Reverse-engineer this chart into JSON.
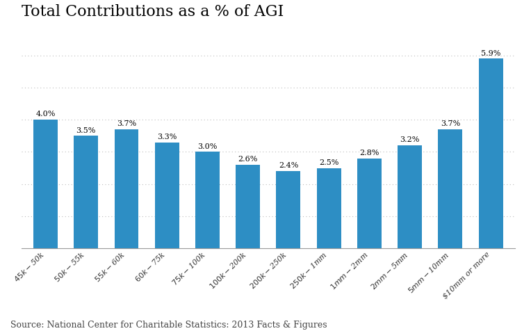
{
  "title": "Total Contributions as a % of AGI",
  "categories": [
    "$45k-$50k",
    "$50k-$55k",
    "$55k-$60k",
    "$60k-$75k",
    "$75k-$100k",
    "$100k-$200k",
    "$200k-$250k",
    "$250k-$1mm",
    "$1mm-$2mm",
    "$2mm-$5mm",
    "$5mm-$10mm",
    "$10mm or more"
  ],
  "values": [
    4.0,
    3.5,
    3.7,
    3.3,
    3.0,
    2.6,
    2.4,
    2.5,
    2.8,
    3.2,
    3.7,
    5.9
  ],
  "bar_color": "#2D8EC4",
  "ylim": [
    0,
    6.8
  ],
  "yticks": [
    1,
    2,
    3,
    4,
    5,
    6
  ],
  "source_text": "Source: National Center for Charitable Statistics: 2013 Facts & Figures",
  "background_color": "#FFFFFF",
  "grid_color": "#BBBBBB",
  "label_fontsize": 8,
  "title_fontsize": 16,
  "source_fontsize": 9,
  "value_fontsize": 8
}
